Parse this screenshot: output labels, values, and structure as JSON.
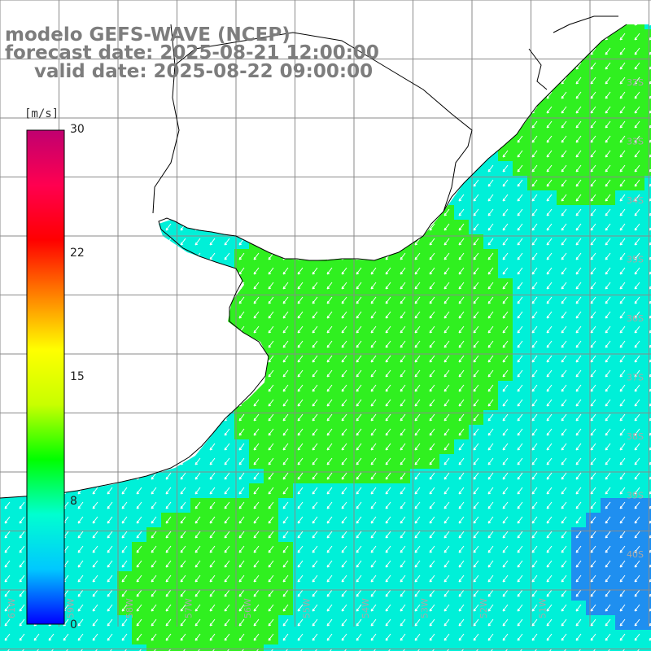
{
  "header": {
    "line1": "modelo GEFS-WAVE (NCEP)",
    "line2": "forecast date: 2025-08-21 12:00:00",
    "line3": "valid date: 2025-08-22 09:00:00"
  },
  "colorbar": {
    "unit": "[m/s]",
    "min": 0,
    "max": 30,
    "ticks": [
      "30",
      "22",
      "15",
      "8",
      "0"
    ],
    "stops": [
      "#0000ff",
      "#00c8ff",
      "#00ffd0",
      "#00ff00",
      "#c8ff00",
      "#ffff00",
      "#ff8000",
      "#ff0000",
      "#ff0050",
      "#c00070"
    ]
  },
  "grid": {
    "lon_labels": [
      "61W",
      "59W",
      "58W",
      "57W",
      "56W",
      "55W",
      "54W",
      "53W",
      "52W",
      "51W"
    ],
    "lat_labels": [
      "32S",
      "33S",
      "34S",
      "35S",
      "36S",
      "37S",
      "38S",
      "39S",
      "40S"
    ]
  },
  "wind_field": {
    "description_colors": {
      "slow": "#1f8ff0",
      "medium": "#00f0d8",
      "fast": "#30f020",
      "faster": "#b0f040"
    },
    "arrow_color": "#ffffff"
  }
}
